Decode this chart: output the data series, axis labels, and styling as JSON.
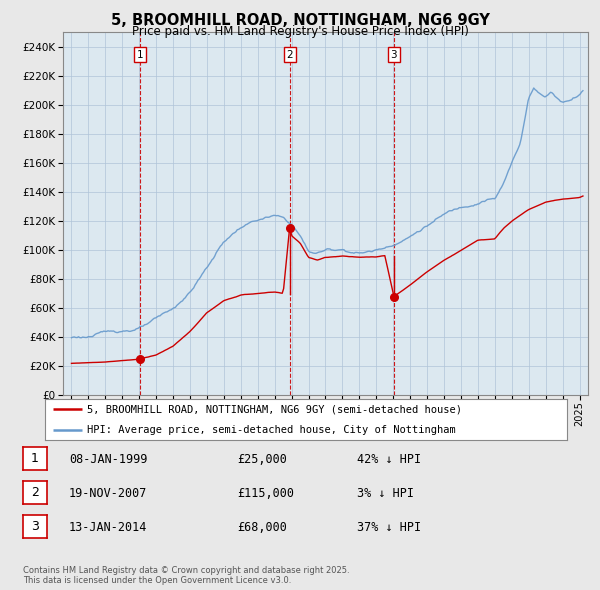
{
  "title": "5, BROOMHILL ROAD, NOTTINGHAM, NG6 9GY",
  "subtitle": "Price paid vs. HM Land Registry's House Price Index (HPI)",
  "legend_line1": "5, BROOMHILL ROAD, NOTTINGHAM, NG6 9GY (semi-detached house)",
  "legend_line2": "HPI: Average price, semi-detached house, City of Nottingham",
  "footer": "Contains HM Land Registry data © Crown copyright and database right 2025.\nThis data is licensed under the Open Government Licence v3.0.",
  "transactions": [
    {
      "num": 1,
      "date_str": "08-JAN-1999",
      "price": "£25,000",
      "pct_str": "42% ↓ HPI",
      "date_x": 1999.03,
      "price_val": 25000
    },
    {
      "num": 2,
      "date_str": "19-NOV-2007",
      "price": "£115,000",
      "pct_str": "3% ↓ HPI",
      "date_x": 2007.88,
      "price_val": 115000
    },
    {
      "num": 3,
      "date_str": "13-JAN-2014",
      "price": "£68,000",
      "pct_str": "37% ↓ HPI",
      "date_x": 2014.03,
      "price_val": 68000
    }
  ],
  "property_color": "#cc0000",
  "hpi_color": "#6699cc",
  "ylim": [
    0,
    250000
  ],
  "yticks": [
    0,
    20000,
    40000,
    60000,
    80000,
    100000,
    120000,
    140000,
    160000,
    180000,
    200000,
    220000,
    240000
  ],
  "xlim": [
    1994.5,
    2025.5
  ],
  "background_color": "#e8e8e8",
  "plot_bg_color": "#dce8f0"
}
